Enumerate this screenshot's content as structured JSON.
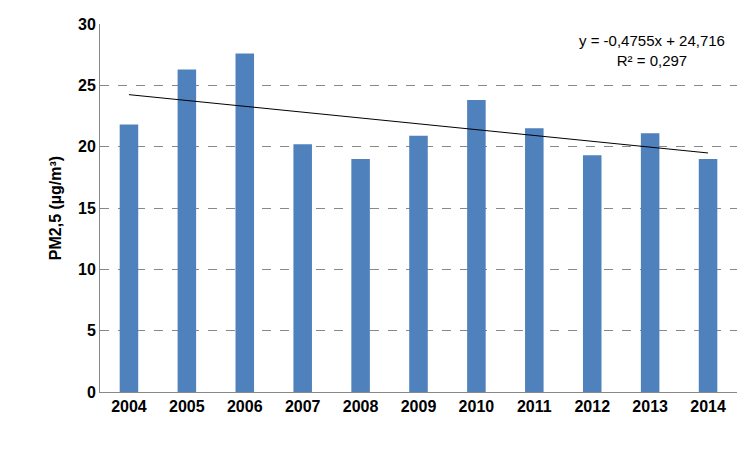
{
  "chart_data": {
    "type": "bar",
    "y_label": "PM2,5 (µg/m³)",
    "categories": [
      "2004",
      "2005",
      "2006",
      "2007",
      "2008",
      "2009",
      "2010",
      "2011",
      "2012",
      "2013",
      "2014"
    ],
    "values": [
      21.8,
      26.3,
      27.6,
      20.2,
      19.0,
      20.9,
      23.8,
      21.5,
      19.3,
      21.1,
      19.0
    ],
    "color": "#4f81bd",
    "ylim": [
      0,
      30
    ],
    "yticks": [
      0,
      5,
      10,
      15,
      20,
      25,
      30
    ],
    "grid": true,
    "trend": {
      "slope": -0.4755,
      "intercept": 24.716,
      "color": "#000000",
      "labels": [
        "y = -0,4755x + 24,716",
        "R² = 0,297"
      ]
    }
  }
}
